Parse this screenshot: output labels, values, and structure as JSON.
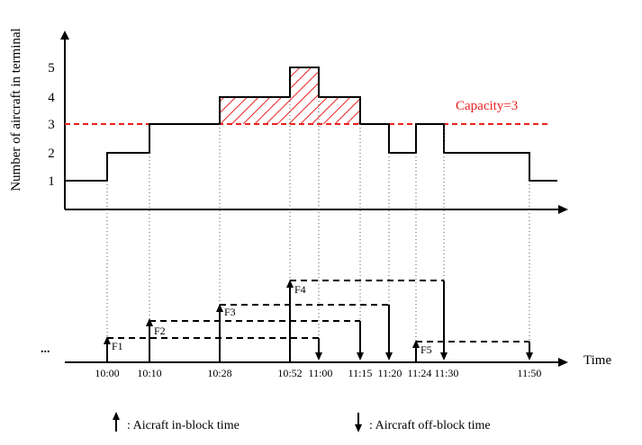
{
  "y_axis_label": "Number of aircraft in terminal",
  "capacity_label": "Capacity=3",
  "time_axis_label": "Time",
  "ellipsis": "...",
  "y_ticks": [
    "1",
    "2",
    "3",
    "4",
    "5"
  ],
  "time_labels": [
    "10:00",
    "10:10",
    "10:28",
    "10:52",
    "11:00",
    "11:15",
    "11:20",
    "11:24",
    "11:30",
    "11:50"
  ],
  "flights": [
    {
      "label": "F1",
      "in_block": "10:00",
      "off_block": "11:00"
    },
    {
      "label": "F2",
      "in_block": "10:10",
      "off_block": "11:15"
    },
    {
      "label": "F3",
      "in_block": "10:28",
      "off_block": "11:20"
    },
    {
      "label": "F4",
      "in_block": "10:52",
      "off_block": "11:30"
    },
    {
      "label": "F5",
      "in_block": "11:24",
      "off_block": "11:50"
    }
  ],
  "occupancy_steps": [
    {
      "from": "start",
      "to": "10:00",
      "count": 1
    },
    {
      "from": "10:00",
      "to": "10:10",
      "count": 2
    },
    {
      "from": "10:10",
      "to": "10:28",
      "count": 3
    },
    {
      "from": "10:28",
      "to": "10:52",
      "count": 4
    },
    {
      "from": "10:52",
      "to": "11:00",
      "count": 5
    },
    {
      "from": "11:00",
      "to": "11:15",
      "count": 4
    },
    {
      "from": "11:15",
      "to": "11:20",
      "count": 3
    },
    {
      "from": "11:20",
      "to": "11:24",
      "count": 2
    },
    {
      "from": "11:24",
      "to": "11:30",
      "count": 3
    },
    {
      "from": "11:30",
      "to": "11:50",
      "count": 2
    },
    {
      "from": "11:50",
      "to": "end",
      "count": 1
    }
  ],
  "capacity": 3,
  "legend": {
    "in_block": ": Aicraft in-block time",
    "off_block": ": Aircraft off-block time"
  },
  "colors": {
    "capacity": "#e8201e",
    "hatch": "#e8201e",
    "line": "#000000"
  }
}
